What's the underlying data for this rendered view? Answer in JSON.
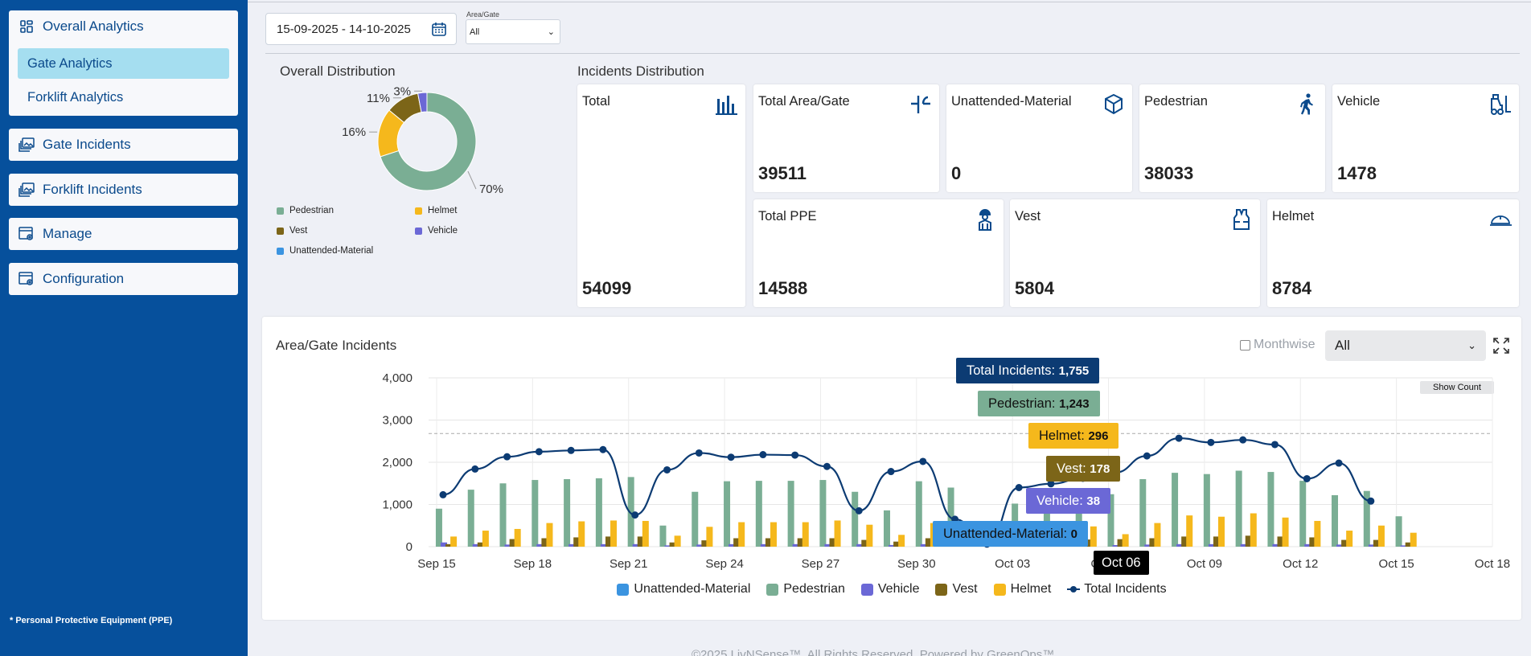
{
  "sidebar": {
    "group_title": "Overall Analytics",
    "sub_items": [
      "Gate Analytics",
      "Forklift Analytics"
    ],
    "items": [
      "Gate Incidents",
      "Forklift Incidents",
      "Manage",
      "Configuration"
    ],
    "note": "* Personal Protective Equipment (PPE)"
  },
  "filters": {
    "date_range": "15-09-2025 - 14-10-2025",
    "area_label": "Area/Gate",
    "area_value": "All"
  },
  "overall_distribution": {
    "title": "Overall Distribution",
    "slices": [
      {
        "name": "Pedestrian",
        "pct": 70,
        "label": "70%",
        "color": "#7aae94"
      },
      {
        "name": "Helmet",
        "pct": 16,
        "label": "16%",
        "color": "#f5b81c"
      },
      {
        "name": "Vest",
        "pct": 11,
        "label": "11%",
        "color": "#7c6518"
      },
      {
        "name": "Vehicle",
        "pct": 3,
        "label": "3%",
        "color": "#6b68d6"
      },
      {
        "name": "Unattended-Material",
        "pct": 0,
        "label": "",
        "color": "#3b94e0"
      }
    ]
  },
  "incidents_distribution": {
    "title": "Incidents Distribution",
    "cards": {
      "total": {
        "label": "Total",
        "value": "54099"
      },
      "total_area": {
        "label": "Total Area/Gate",
        "value": "39511"
      },
      "unattended": {
        "label": "Unattended-Material",
        "value": "0"
      },
      "pedestrian": {
        "label": "Pedestrian",
        "value": "38033"
      },
      "vehicle": {
        "label": "Vehicle",
        "value": "1478"
      },
      "total_ppe": {
        "label": "Total PPE",
        "value": "14588"
      },
      "vest": {
        "label": "Vest",
        "value": "5804"
      },
      "helmet": {
        "label": "Helmet",
        "value": "8784"
      }
    },
    "icon_color": "#0b4a8c"
  },
  "area_chart": {
    "title": "Area/Gate Incidents",
    "monthwise_label": "Monthwise",
    "select_value": "All",
    "show_count_label": "Show Count",
    "tooltip_date": "Oct 06",
    "tooltips": [
      {
        "label": "Total Incidents: ",
        "value": "1,755",
        "color": "#0c3b73"
      },
      {
        "label": "Pedestrian: ",
        "value": "1,243",
        "color": "#7aae94"
      },
      {
        "label": "Helmet: ",
        "value": "296",
        "color": "#f5b81c"
      },
      {
        "label": "Vest: ",
        "value": "178",
        "color": "#7c6518"
      },
      {
        "label": "Vehicle: ",
        "value": "38",
        "color": "#6b68d6"
      },
      {
        "label": "Unattended-Material: ",
        "value": "0",
        "color": "#3b94e0"
      }
    ]
  },
  "footer": "©2025 LivNSense™. All Rights Reserved. Powered by GreenOps™",
  "chart_data": {
    "type": "bar",
    "title": "Area/Gate Incidents",
    "ylim": [
      0,
      4000
    ],
    "yticks": [
      "0",
      "1,000",
      "2,000",
      "3,000",
      "4,000"
    ],
    "xticks": [
      "Sep 15",
      "Sep 18",
      "Sep 21",
      "Sep 24",
      "Sep 27",
      "Sep 30",
      "Oct 03",
      "Oct 06",
      "Oct 09",
      "Oct 12",
      "Oct 15",
      "Oct 18"
    ],
    "reference_line": 2680,
    "categories": [
      "Sep 15",
      "Sep 16",
      "Sep 17",
      "Sep 18",
      "Sep 19",
      "Sep 20",
      "Sep 21",
      "Sep 22",
      "Sep 23",
      "Sep 24",
      "Sep 25",
      "Sep 26",
      "Sep 27",
      "Sep 28",
      "Sep 29",
      "Sep 30",
      "Oct 01",
      "Oct 02",
      "Oct 03",
      "Oct 04",
      "Oct 05",
      "Oct 06",
      "Oct 07",
      "Oct 08",
      "Oct 09",
      "Oct 10",
      "Oct 11",
      "Oct 12",
      "Oct 13",
      "Oct 14",
      "Oct 15"
    ],
    "series": [
      {
        "name": "Unattended-Material",
        "color": "#3b94e0",
        "values": [
          0,
          0,
          0,
          0,
          0,
          0,
          0,
          0,
          0,
          0,
          0,
          0,
          0,
          0,
          0,
          0,
          0,
          0,
          0,
          0,
          0,
          0,
          0,
          0,
          0,
          0,
          0,
          0,
          0,
          0,
          0
        ]
      },
      {
        "name": "Pedestrian",
        "color": "#7aae94",
        "values": [
          900,
          1350,
          1500,
          1580,
          1600,
          1620,
          1650,
          500,
          1300,
          1550,
          1560,
          1560,
          1580,
          1300,
          860,
          1550,
          1400,
          80,
          1020,
          1030,
          1140,
          1243,
          1600,
          1750,
          1720,
          1800,
          1770,
          1560,
          1220,
          1320,
          720
        ]
      },
      {
        "name": "Vehicle",
        "color": "#6b68d6",
        "values": [
          100,
          60,
          50,
          60,
          60,
          60,
          60,
          30,
          50,
          60,
          60,
          60,
          60,
          60,
          40,
          60,
          50,
          10,
          40,
          40,
          40,
          38,
          50,
          60,
          60,
          60,
          60,
          60,
          50,
          50,
          30
        ]
      },
      {
        "name": "Vest",
        "color": "#7c6518",
        "values": [
          60,
          100,
          180,
          200,
          220,
          240,
          240,
          100,
          150,
          200,
          200,
          200,
          200,
          160,
          120,
          200,
          180,
          30,
          140,
          160,
          170,
          178,
          200,
          240,
          240,
          260,
          240,
          220,
          160,
          160,
          100
        ]
      },
      {
        "name": "Helmet",
        "color": "#f5b81c",
        "values": [
          240,
          380,
          420,
          560,
          600,
          620,
          610,
          260,
          470,
          580,
          580,
          580,
          620,
          520,
          280,
          560,
          520,
          50,
          420,
          460,
          480,
          296,
          560,
          740,
          710,
          790,
          690,
          610,
          380,
          500,
          330
        ]
      },
      {
        "name": "Total Incidents",
        "color": "#0c3b73",
        "values": [
          1230,
          1840,
          2130,
          2250,
          2280,
          2300,
          750,
          1820,
          2220,
          2120,
          2180,
          2170,
          1900,
          850,
          1780,
          2020,
          650,
          60,
          1400,
          1490,
          1620,
          1755,
          2150,
          2570,
          2470,
          2530,
          2420,
          1610,
          1980,
          1080,
          null
        ]
      }
    ]
  }
}
